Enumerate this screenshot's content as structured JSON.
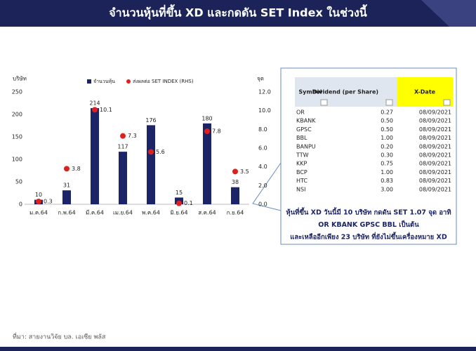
{
  "header": {
    "title": "จำนวนหุ้นที่ขึ้น XD และกดดัน SET Index ในช่วงนี้"
  },
  "chart_data": {
    "type": "bar-dot",
    "categories": [
      "ม.ค.64",
      "ก.พ.64",
      "มี.ค.64",
      "เม.ย.64",
      "พ.ค.64",
      "มิ.ย.64",
      "ส.ค.64",
      "ก.ย.64"
    ],
    "y_label": "บริษัท",
    "y2_label": "จุด",
    "series": [
      {
        "name": "จำนวนหุ้น",
        "color": "#1b2466",
        "type": "bar",
        "values": [
          10,
          31,
          214,
          117,
          176,
          15,
          180,
          38
        ]
      },
      {
        "name": "ส่งผลต่อ SET INDEX (RHS)",
        "color": "#e0201c",
        "type": "dot",
        "axis": "y2",
        "values": [
          0.3,
          3.8,
          10.1,
          7.3,
          5.6,
          0.1,
          7.8,
          3.5
        ]
      }
    ],
    "ylim": [
      0,
      250
    ],
    "yticks": [
      0,
      50,
      100,
      150,
      200,
      250
    ],
    "y2lim": [
      0,
      12
    ],
    "y2ticks": [
      {
        "value": 0,
        "label": "0.0"
      },
      {
        "value": 2,
        "label": "2.0"
      },
      {
        "value": 4,
        "label": "4.0"
      },
      {
        "value": 6,
        "label": "6.0"
      },
      {
        "value": 8,
        "label": "8.0"
      },
      {
        "value": 10,
        "label": "10.0"
      },
      {
        "value": 12,
        "label": "12.0"
      }
    ],
    "grid": false,
    "legend": "top"
  },
  "table": {
    "header": [
      "Symbol",
      "Dividend (per Share)",
      "X-Date"
    ],
    "rows": [
      [
        "OR",
        "0.27",
        "08/09/2021"
      ],
      [
        "KBANK",
        "0.50",
        "08/09/2021"
      ],
      [
        "GPSC",
        "0.50",
        "08/09/2021"
      ],
      [
        "BBL",
        "1.00",
        "08/09/2021"
      ],
      [
        "BANPU",
        "0.20",
        "08/09/2021"
      ],
      [
        "TTW",
        "0.30",
        "08/09/2021"
      ],
      [
        "KKP",
        "0.75",
        "08/09/2021"
      ],
      [
        "BCP",
        "1.00",
        "08/09/2021"
      ],
      [
        "HTC",
        "0.83",
        "08/09/2021"
      ],
      [
        "NSI",
        "3.00",
        "08/09/2021"
      ]
    ]
  },
  "note": [
    "หุ้นที่ขึ้น XD วันนี้มี 10 บริษัท กดดัน SET 1.07 จุด อาทิ",
    "OR KBANK GPSC BBL เป็นต้น",
    "และเหลืออีกเพียง 23 บริษัท ที่ยังไม่ขึ้นเครื่องหมาย XD"
  ],
  "source": "ที่มา: สายงานวิจัย บล. เอเซีย พลัส"
}
